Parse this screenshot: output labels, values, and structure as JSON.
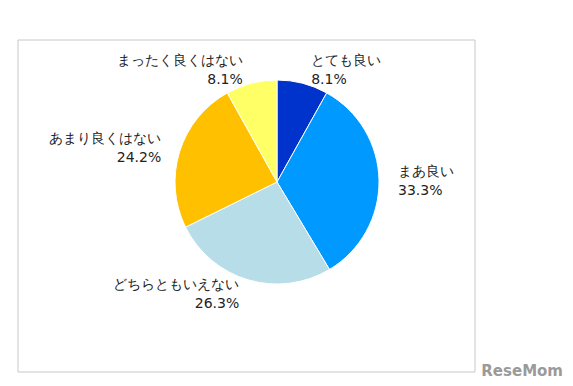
{
  "chart_data": {
    "type": "pie",
    "categories": [
      "とても良い",
      "まあ良い",
      "どちらともいえない",
      "あまり良くはない",
      "まったく良くはない"
    ],
    "values": [
      8.1,
      33.3,
      26.3,
      24.2,
      8.1
    ],
    "value_labels": [
      "8.1%",
      "33.3%",
      "26.3%",
      "24.2%",
      "8.1%"
    ],
    "colors": [
      "#0033cc",
      "#0099ff",
      "#b7dde8",
      "#ffc000",
      "#ffff66"
    ],
    "data_labels": true,
    "annotations": [
      "ReseMom"
    ]
  }
}
